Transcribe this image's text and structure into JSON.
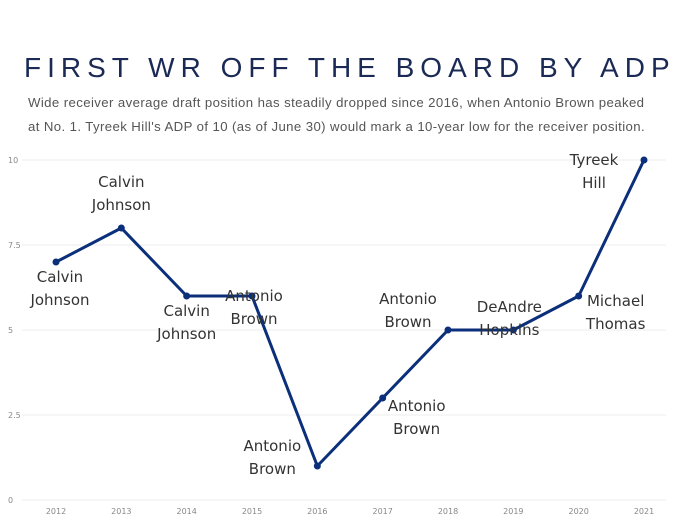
{
  "chart_data": {
    "type": "line",
    "title": "FIRST WR OFF THE BOARD BY ADP",
    "subtitle": [
      "Wide receiver average draft position has steadily dropped since 2016, when Antonio Brown peaked",
      "at No. 1. Tyreek Hill's ADP of 10 (as of June 30) would mark a 10-year low for the receiver position."
    ],
    "categories": [
      "2012",
      "2013",
      "2014",
      "2015",
      "2016",
      "2017",
      "2018",
      "2019",
      "2020",
      "2021"
    ],
    "values": [
      7,
      8,
      6,
      6,
      1,
      3,
      5,
      5,
      6,
      10
    ],
    "point_labels": [
      [
        "Calvin",
        "Johnson"
      ],
      [
        "Calvin",
        "Johnson"
      ],
      [
        "Calvin",
        "Johnson"
      ],
      [
        "Antonio",
        "Brown"
      ],
      [
        "Antonio",
        "Brown"
      ],
      [
        "Antonio",
        "Brown"
      ],
      [
        "Antonio",
        "Brown"
      ],
      [
        "DeAndre",
        "Hopkins"
      ],
      [
        "Michael",
        "Thomas"
      ],
      [
        "Tyreek",
        "Hill"
      ]
    ],
    "color": "#0b2f7a",
    "ylim": [
      0,
      10
    ],
    "yticks": [
      0,
      2.5,
      5,
      7.5,
      10
    ],
    "grid": true
  }
}
